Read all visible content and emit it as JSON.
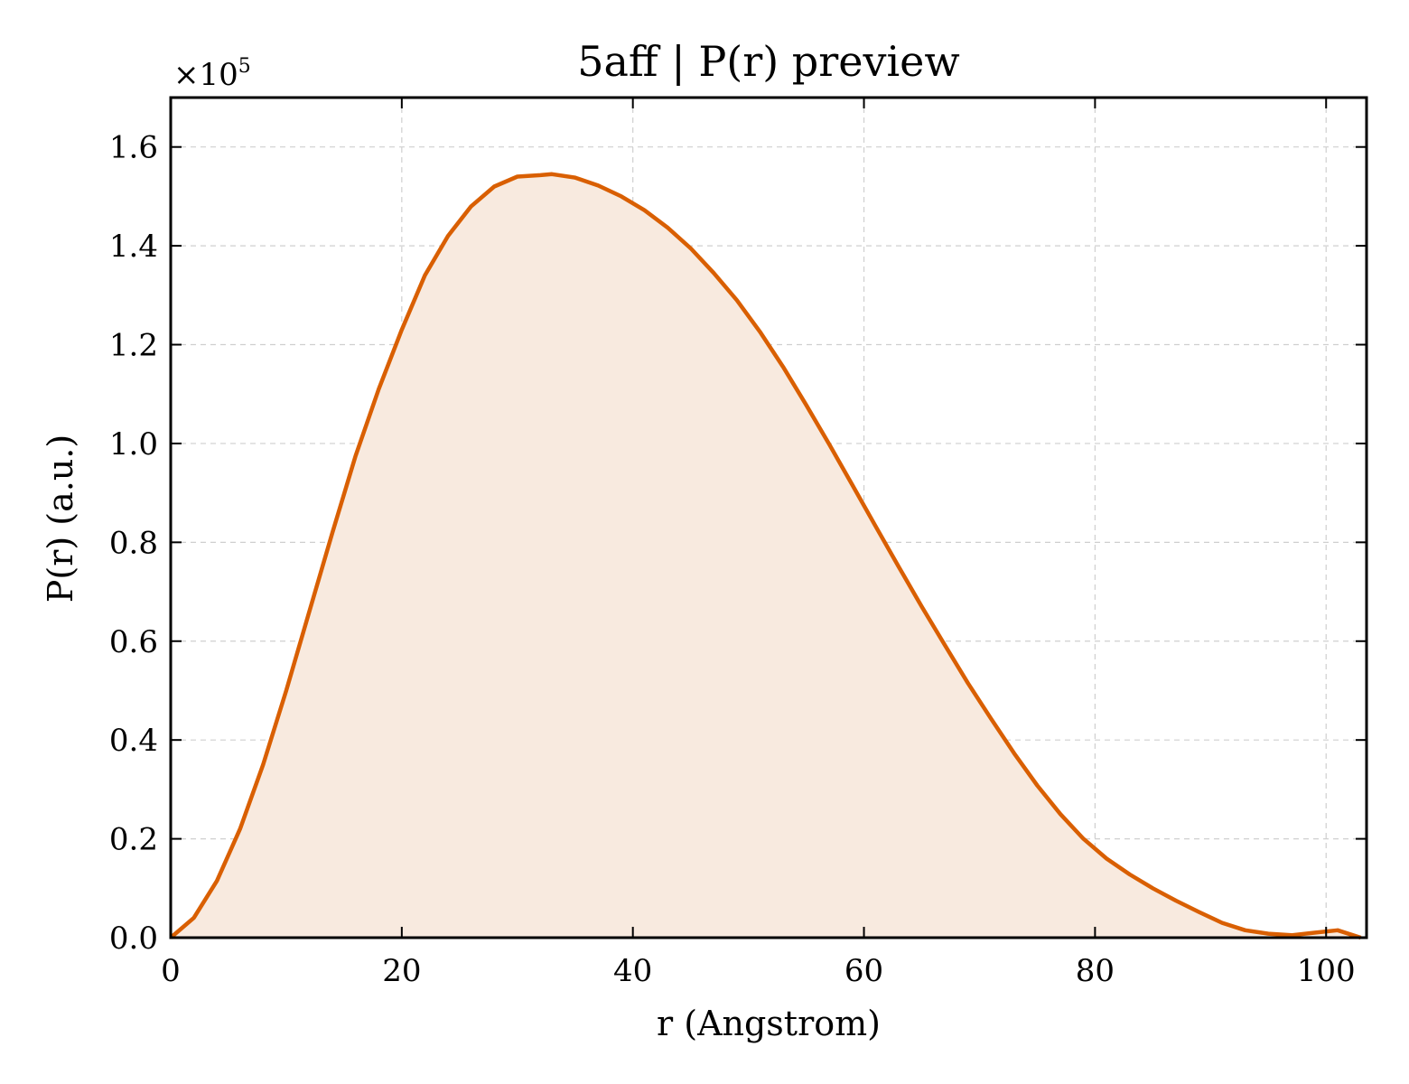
{
  "chart_data": {
    "type": "area",
    "title": "5aff | P(r) preview",
    "xlabel": "r (Angstrom)",
    "ylabel": "P(r) (a.u.)",
    "y_multiplier_label": "×10",
    "y_multiplier_exponent": "5",
    "xlim": [
      0,
      103.5
    ],
    "ylim": [
      0,
      1.7
    ],
    "x_ticks": [
      0,
      20,
      40,
      60,
      80,
      100
    ],
    "x_tick_labels": [
      "0",
      "20",
      "40",
      "60",
      "80",
      "100"
    ],
    "y_ticks": [
      0.0,
      0.2,
      0.4,
      0.6,
      0.8,
      1.0,
      1.2,
      1.4,
      1.6
    ],
    "y_tick_labels": [
      "0.0",
      "0.2",
      "0.4",
      "0.6",
      "0.8",
      "1.0",
      "1.2",
      "1.4",
      "1.6"
    ],
    "grid": true,
    "line_color": "#d95f02",
    "fill_color": "#f8eadf",
    "series": [
      {
        "x": [
          0,
          2,
          4,
          6,
          8,
          10,
          12,
          14,
          16,
          18,
          20,
          22,
          24,
          26,
          28,
          30,
          32,
          33,
          35,
          37,
          39,
          41,
          43,
          45,
          47,
          49,
          51,
          53,
          55,
          57,
          59,
          61,
          63,
          65,
          67,
          69,
          71,
          73,
          75,
          77,
          79,
          81,
          83,
          85,
          87,
          89,
          91,
          93,
          95,
          97,
          99,
          101,
          103
        ],
        "y": [
          0.0,
          0.04,
          0.115,
          0.22,
          0.35,
          0.5,
          0.66,
          0.82,
          0.975,
          1.11,
          1.23,
          1.34,
          1.42,
          1.48,
          1.52,
          1.54,
          1.543,
          1.545,
          1.538,
          1.522,
          1.5,
          1.472,
          1.437,
          1.395,
          1.345,
          1.29,
          1.226,
          1.155,
          1.078,
          0.998,
          0.916,
          0.833,
          0.751,
          0.67,
          0.592,
          0.515,
          0.443,
          0.373,
          0.308,
          0.25,
          0.2,
          0.16,
          0.128,
          0.1,
          0.075,
          0.052,
          0.03,
          0.015,
          0.008,
          0.005,
          0.01,
          0.015,
          0.0
        ]
      }
    ]
  }
}
